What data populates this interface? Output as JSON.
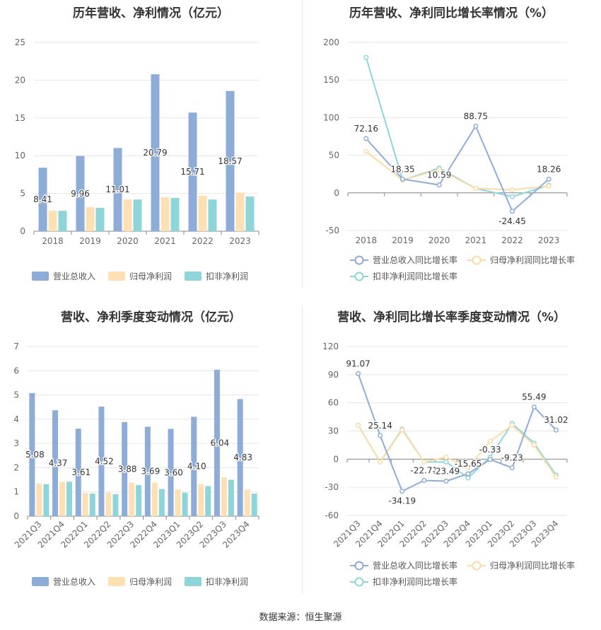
{
  "charts": [
    {
      "id": "annual-amount",
      "title": "历年营收、净利情况（亿元）",
      "legend": [
        "营业总收入",
        "归母净利润",
        "扣非净利润"
      ]
    },
    {
      "id": "annual-growth",
      "title": "历年营收、净利同比增长率情况（%）",
      "legend": [
        "营业总收入同比增长率",
        "归母净利润同比增长率",
        "扣非净利润同比增长率"
      ]
    },
    {
      "id": "quarterly-amount",
      "title": "营收、净利季度变动情况（亿元）",
      "legend": [
        "营业总收入",
        "归母净利润",
        "扣非净利润"
      ]
    },
    {
      "id": "quarterly-growth",
      "title": "营收、净利同比增长率季度变动情况（%）",
      "legend": [
        "营业总收入同比增长率",
        "归母净利润同比增长率",
        "扣非净利润同比增长率"
      ]
    }
  ],
  "colors": {
    "revenue": "#8eacd8",
    "net_profit": "#fde0b4",
    "deducted_profit": "#8dd5d9",
    "revenue_line": "#8eacd8",
    "net_line": "#fbdca5",
    "deducted_line": "#8fd6d9"
  },
  "source": "数据来源：恒生聚源",
  "chart_data": [
    {
      "type": "bar",
      "categories": [
        "2018",
        "2019",
        "2020",
        "2021",
        "2022",
        "2023"
      ],
      "ylim": [
        0,
        25
      ],
      "yticks": [
        0,
        5,
        10,
        15,
        20,
        25
      ],
      "series": [
        {
          "name": "营业总收入",
          "values": [
            8.41,
            9.96,
            11.01,
            20.79,
            15.71,
            18.57
          ],
          "labels": [
            "8.41",
            "9.96",
            "11.01",
            "20.79",
            "15.71",
            "18.57"
          ]
        },
        {
          "name": "归母净利润",
          "values": [
            2.7,
            3.2,
            4.2,
            4.5,
            4.7,
            5.1
          ]
        },
        {
          "name": "扣非净利润",
          "values": [
            2.7,
            3.1,
            4.2,
            4.4,
            4.2,
            4.6
          ]
        }
      ]
    },
    {
      "type": "line",
      "categories": [
        "2018",
        "2019",
        "2020",
        "2021",
        "2022",
        "2023"
      ],
      "ylim": [
        -50,
        200
      ],
      "yticks": [
        -50,
        0,
        50,
        100,
        150,
        200
      ],
      "series": [
        {
          "name": "营业总收入同比增长率",
          "values": [
            72.16,
            18.35,
            10.59,
            88.75,
            -24.45,
            18.26
          ],
          "labels": [
            "72.16",
            "18.35",
            "10.59",
            "88.75",
            "-24.45",
            "18.26"
          ]
        },
        {
          "name": "归母净利润同比增长率",
          "values": [
            55,
            17,
            31,
            6,
            4,
            9
          ]
        },
        {
          "name": "扣非净利润同比增长率",
          "values": [
            180,
            17,
            33,
            6,
            -5,
            10
          ]
        }
      ]
    },
    {
      "type": "bar",
      "categories": [
        "2021Q3",
        "2021Q4",
        "2022Q1",
        "2022Q2",
        "2022Q3",
        "2022Q4",
        "2023Q1",
        "2023Q2",
        "2023Q3",
        "2023Q4"
      ],
      "ylim": [
        0,
        7
      ],
      "yticks": [
        0,
        1,
        2,
        3,
        4,
        5,
        6,
        7
      ],
      "series": [
        {
          "name": "营业总收入",
          "values": [
            5.08,
            4.37,
            3.61,
            4.52,
            3.88,
            3.69,
            3.6,
            4.1,
            6.04,
            4.83
          ],
          "labels": [
            "5.08",
            "4.37",
            "3.61",
            "4.52",
            "3.88",
            "3.69",
            "3.60",
            "4.10",
            "6.04",
            "4.83"
          ]
        },
        {
          "name": "归母净利润",
          "values": [
            1.35,
            1.42,
            0.95,
            0.97,
            1.38,
            1.38,
            1.1,
            1.32,
            1.6,
            1.1
          ]
        },
        {
          "name": "扣非净利润",
          "values": [
            1.32,
            1.42,
            0.93,
            0.91,
            1.28,
            1.12,
            0.97,
            1.24,
            1.5,
            0.93
          ]
        }
      ]
    },
    {
      "type": "line",
      "categories": [
        "2021Q3",
        "2021Q4",
        "2022Q1",
        "2022Q2",
        "2022Q3",
        "2022Q4",
        "2023Q1",
        "2023Q2",
        "2023Q3",
        "2023Q4"
      ],
      "ylim": [
        -60,
        120
      ],
      "yticks": [
        -60,
        -30,
        0,
        30,
        60,
        90,
        120
      ],
      "series": [
        {
          "name": "营业总收入同比增长率",
          "values": [
            91.07,
            25.14,
            -34.19,
            -22.71,
            -23.49,
            -15.65,
            -0.33,
            -9.23,
            55.49,
            31.02
          ],
          "labels": [
            "91.07",
            "25.14",
            "-34.19",
            "-22.71",
            "-23.49",
            "-15.65",
            "-0.33",
            "-9.23",
            "55.49",
            "31.02"
          ]
        },
        {
          "name": "归母净利润同比增长率",
          "values": [
            36,
            -3,
            31,
            -3,
            2,
            -9,
            19,
            36,
            15,
            -19
          ]
        },
        {
          "name": "扣非净利润同比增长率",
          "values": [
            36,
            -3,
            32,
            -3,
            -3,
            -20,
            2,
            38,
            17,
            -17
          ]
        }
      ]
    }
  ]
}
